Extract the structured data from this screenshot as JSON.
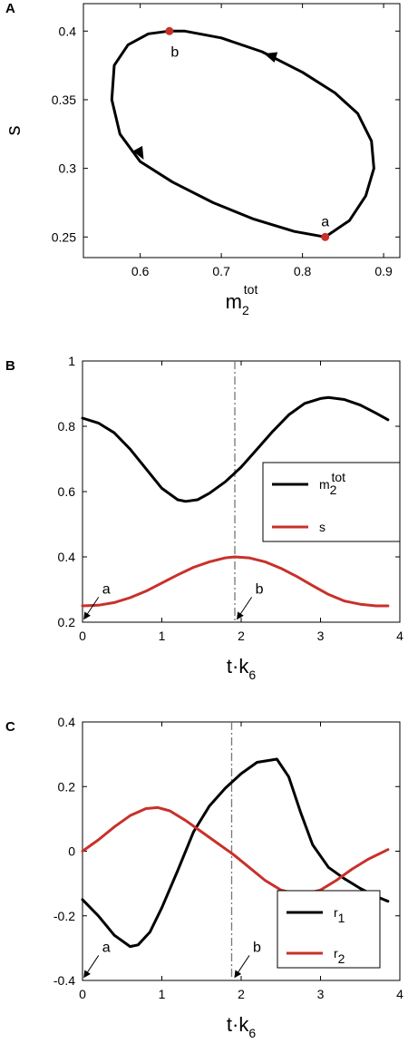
{
  "chart_data": [
    {
      "panel": "A",
      "type": "line",
      "xlabel": "m",
      "xlabel_sub": "2",
      "xlabel_sup": "tot",
      "ylabel": "s",
      "xlim": [
        0.53,
        0.92
      ],
      "ylim": [
        0.235,
        0.42
      ],
      "xticks": [
        0.6,
        0.7,
        0.8,
        0.9
      ],
      "xtick_labels": [
        "0.6",
        "0.7",
        "0.8",
        "0.9"
      ],
      "yticks": [
        0.25,
        0.3,
        0.35,
        0.4
      ],
      "ytick_labels": [
        "0.25",
        "0.3",
        "0.35",
        "0.4"
      ],
      "series": [
        {
          "color": "#000000",
          "x": [
            0.828,
            0.858,
            0.878,
            0.888,
            0.885,
            0.868,
            0.84,
            0.8,
            0.75,
            0.7,
            0.655,
            0.635,
            0.61,
            0.585,
            0.568,
            0.565,
            0.575,
            0.6,
            0.64,
            0.69,
            0.74,
            0.79,
            0.828
          ],
          "y": [
            0.25,
            0.262,
            0.28,
            0.3,
            0.32,
            0.34,
            0.355,
            0.37,
            0.385,
            0.395,
            0.4,
            0.4,
            0.398,
            0.39,
            0.375,
            0.35,
            0.325,
            0.305,
            0.29,
            0.275,
            0.263,
            0.254,
            0.25
          ]
        }
      ],
      "arrows": [
        {
          "x": 0.761,
          "y": 0.382,
          "dx": -1,
          "dy": 0.31
        },
        {
          "x": 0.6,
          "y": 0.311,
          "dx": 0.55,
          "dy": -1
        }
      ],
      "points": [
        {
          "label": "a",
          "x": 0.828,
          "y": 0.25,
          "color": "#c8312a"
        },
        {
          "label": "b",
          "x": 0.636,
          "y": 0.4,
          "color": "#c8312a"
        }
      ]
    },
    {
      "panel": "B",
      "type": "line",
      "xlabel": "t·k",
      "xlabel_sub": "6",
      "xlim": [
        0,
        4
      ],
      "ylim": [
        0.2,
        1.0
      ],
      "xticks": [
        0,
        1,
        2,
        3,
        4
      ],
      "xtick_labels": [
        "0",
        "1",
        "2",
        "3",
        "4"
      ],
      "yticks": [
        0.2,
        0.4,
        0.6,
        0.8,
        1.0
      ],
      "ytick_labels": [
        "0.2",
        "0.4",
        "0.6",
        "0.8",
        "1"
      ],
      "vline": {
        "x": 1.92
      },
      "legend_position": "right",
      "series": [
        {
          "name": "m",
          "name_sub": "2",
          "name_sup": "tot",
          "color": "#000000",
          "x": [
            0,
            0.2,
            0.4,
            0.6,
            0.8,
            1.0,
            1.2,
            1.3,
            1.45,
            1.6,
            1.8,
            2.0,
            2.2,
            2.4,
            2.6,
            2.8,
            3.0,
            3.1,
            3.3,
            3.5,
            3.7,
            3.85
          ],
          "y": [
            0.825,
            0.81,
            0.78,
            0.73,
            0.67,
            0.61,
            0.575,
            0.57,
            0.575,
            0.595,
            0.63,
            0.675,
            0.73,
            0.785,
            0.835,
            0.87,
            0.885,
            0.888,
            0.882,
            0.865,
            0.84,
            0.82
          ]
        },
        {
          "name": "s",
          "color": "#c8312a",
          "x": [
            0,
            0.2,
            0.4,
            0.6,
            0.8,
            1.0,
            1.2,
            1.4,
            1.6,
            1.8,
            1.92,
            2.1,
            2.3,
            2.5,
            2.7,
            2.9,
            3.1,
            3.3,
            3.5,
            3.7,
            3.85
          ],
          "y": [
            0.25,
            0.252,
            0.26,
            0.275,
            0.295,
            0.32,
            0.345,
            0.368,
            0.385,
            0.397,
            0.4,
            0.397,
            0.385,
            0.365,
            0.34,
            0.312,
            0.285,
            0.265,
            0.255,
            0.25,
            0.25
          ]
        }
      ],
      "annotations": [
        {
          "label": "a",
          "x": 0.02,
          "y": 0.21
        },
        {
          "label": "b",
          "x": 1.95,
          "y": 0.21
        }
      ]
    },
    {
      "panel": "C",
      "type": "line",
      "xlabel": "t·k",
      "xlabel_sub": "6",
      "xlim": [
        0,
        4
      ],
      "ylim": [
        -0.4,
        0.4
      ],
      "xticks": [
        0,
        1,
        2,
        3,
        4
      ],
      "xtick_labels": [
        "0",
        "1",
        "2",
        "3",
        "4"
      ],
      "yticks": [
        -0.4,
        -0.2,
        0,
        0.2,
        0.4
      ],
      "ytick_labels": [
        "-0.4",
        "-0.2",
        "0",
        "0.2",
        "0.4"
      ],
      "vline": {
        "x": 1.88
      },
      "legend_position": "bottom-right",
      "series": [
        {
          "name": "r",
          "name_sub": "1",
          "color": "#000000",
          "x": [
            0,
            0.2,
            0.4,
            0.6,
            0.7,
            0.85,
            1.0,
            1.2,
            1.4,
            1.6,
            1.8,
            2.0,
            2.2,
            2.45,
            2.6,
            2.75,
            2.9,
            3.1,
            3.3,
            3.5,
            3.7,
            3.85
          ],
          "y": [
            -0.15,
            -0.2,
            -0.26,
            -0.295,
            -0.29,
            -0.25,
            -0.175,
            -0.06,
            0.06,
            0.14,
            0.195,
            0.24,
            0.275,
            0.285,
            0.23,
            0.12,
            0.02,
            -0.05,
            -0.085,
            -0.115,
            -0.14,
            -0.155
          ]
        },
        {
          "name": "r",
          "name_sub": "2",
          "color": "#c8312a",
          "x": [
            0,
            0.2,
            0.4,
            0.6,
            0.8,
            0.95,
            1.1,
            1.3,
            1.5,
            1.7,
            1.9,
            2.1,
            2.3,
            2.5,
            2.75,
            3.0,
            3.2,
            3.4,
            3.6,
            3.85
          ],
          "y": [
            0.0,
            0.035,
            0.075,
            0.11,
            0.132,
            0.135,
            0.125,
            0.095,
            0.06,
            0.025,
            -0.01,
            -0.05,
            -0.09,
            -0.12,
            -0.135,
            -0.12,
            -0.09,
            -0.055,
            -0.025,
            0.005
          ]
        }
      ],
      "annotations": [
        {
          "label": "a",
          "x": 0.02,
          "y": -0.39
        },
        {
          "label": "b",
          "x": 1.92,
          "y": -0.39
        }
      ]
    }
  ]
}
